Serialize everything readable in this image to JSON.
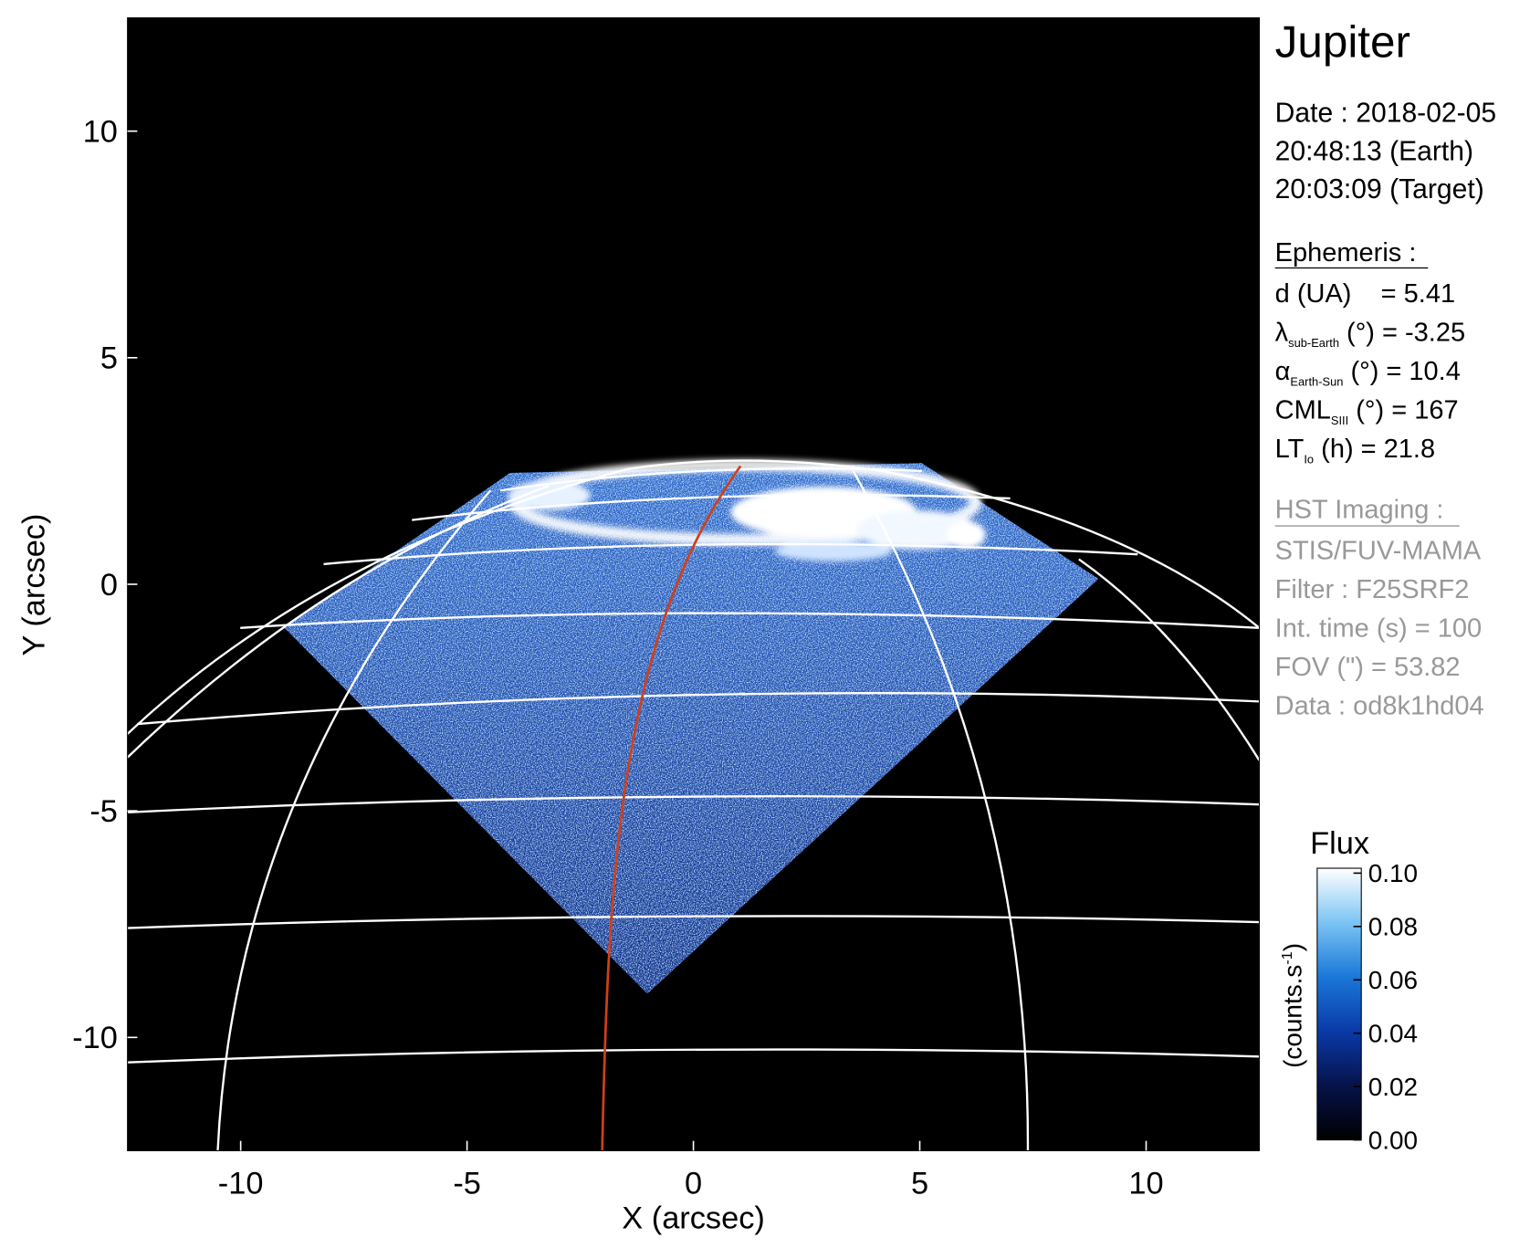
{
  "chart_data": {
    "type": "image",
    "xlabel": "X (arcsec)",
    "ylabel": "Y (arcsec)",
    "xlim": [
      -12.5,
      12.5
    ],
    "ylim": [
      -12.5,
      12.5
    ],
    "xticks": [
      -10,
      -5,
      0,
      5,
      10
    ],
    "yticks": [
      -10,
      -5,
      0,
      5,
      10
    ],
    "colorbar": {
      "title": "Flux",
      "unit": "(counts.s",
      "unit_sup": "-1",
      "unit_close": ")",
      "lim": [
        0,
        0.1
      ],
      "ticks": [
        {
          "value": 0,
          "label": "0.00"
        },
        {
          "value": 0.02,
          "label": "0.02"
        },
        {
          "value": 0.04,
          "label": "0.04"
        },
        {
          "value": 0.06,
          "label": "0.06"
        },
        {
          "value": 0.08,
          "label": "0.08"
        },
        {
          "value": 0.1,
          "label": "0.10"
        }
      ],
      "colors": [
        "#000000",
        "#06124a",
        "#0a3aa8",
        "#1a78d8",
        "#7cc4f4",
        "#ffffff"
      ]
    }
  },
  "info": {
    "target": "Jupiter",
    "date": [
      "Date : 2018-02-05",
      "20:48:13 (Earth)",
      "20:03:09 (Target)"
    ],
    "ephemeris_title": "Ephemeris :",
    "ephemeris": [
      {
        "sym": "d (UA)    = 5.41"
      },
      {
        "sym": "λ",
        "sub": "sub-Earth",
        "rest": " (°) = -3.25"
      },
      {
        "sym": "α",
        "sub": "Earth-Sun",
        "rest": " (°) = 10.4"
      },
      {
        "sym": "CML",
        "sub": "SIII",
        "rest": " (°) = 167"
      },
      {
        "sym": "LT",
        "sub": "Io",
        "rest": " (h) = 21.8"
      }
    ],
    "hst_title": "HST Imaging :",
    "hst": [
      "STIS/FUV-MAMA",
      "Filter : F25SRF2",
      "Int. time (s) = 100",
      "FOV (\") = 53.82",
      "Data : od8k1hd04"
    ]
  }
}
